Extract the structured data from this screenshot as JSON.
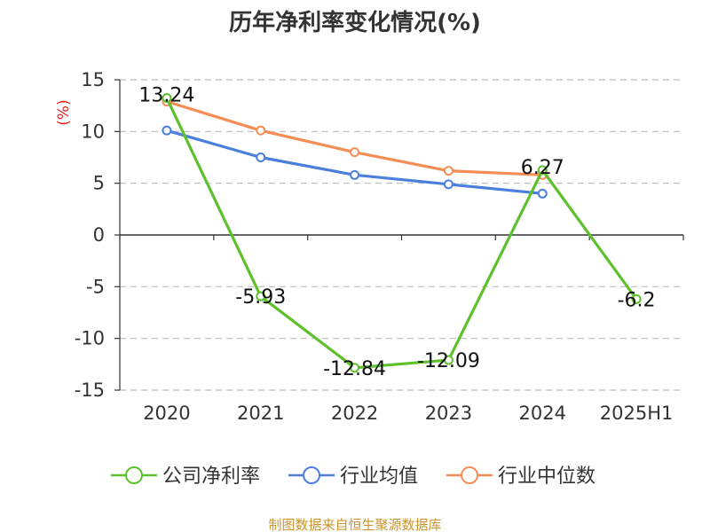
{
  "chart_data": {
    "type": "line",
    "title": "历年净利率变化情况(%)",
    "ylabel": "(%)",
    "categories": [
      "2020",
      "2021",
      "2022",
      "2023",
      "2024",
      "2025H1"
    ],
    "yticks": [
      "15",
      "10",
      "5",
      "0",
      "-5",
      "-10",
      "-15"
    ],
    "ylim": [
      -15,
      15
    ],
    "grid": "horizontal dashed",
    "legend_position": "bottom",
    "series": [
      {
        "name": "公司净利率",
        "color": "#5dc12c",
        "values": [
          13.24,
          -5.93,
          -12.84,
          -12.09,
          6.27,
          -6.2
        ],
        "labels": [
          "13.24",
          "-5.93",
          "-12.84",
          "-12.09",
          "6.27",
          "-6.2"
        ]
      },
      {
        "name": "行业均值",
        "color": "#4a7fdd",
        "values": [
          10.1,
          7.5,
          5.8,
          4.9,
          4.0,
          null
        ]
      },
      {
        "name": "行业中位数",
        "color": "#f58d55",
        "values": [
          12.9,
          10.1,
          8.0,
          6.2,
          5.8,
          null
        ]
      }
    ]
  },
  "footer": {
    "source": "制图数据来自恒生聚源数据库",
    "source_color": "#c8962d"
  },
  "colors": {
    "axis": "#333333",
    "grid": "#bbbbbb",
    "unit": "#e2231a"
  }
}
